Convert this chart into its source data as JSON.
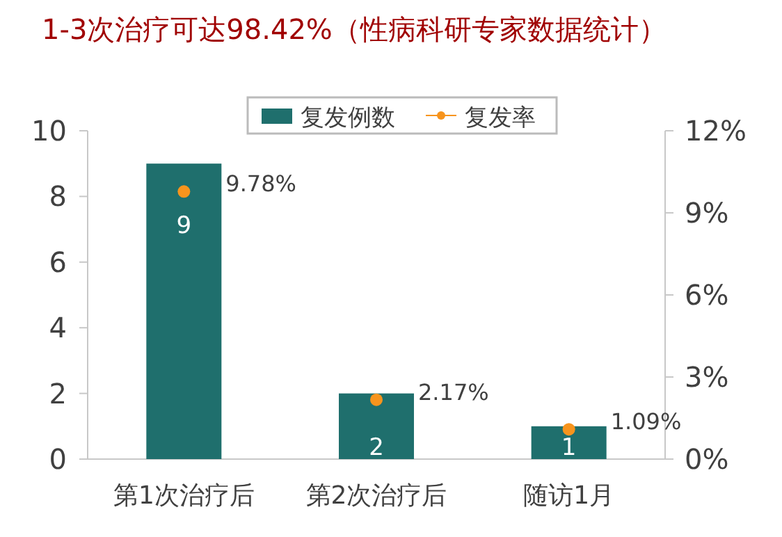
{
  "chart_data": {
    "type": "bar",
    "title": "1-3次治疗可达98.42%（性病科研专家数据统计）",
    "categories": [
      "第1次治疗后",
      "第2次治疗后",
      "随访1月"
    ],
    "series": [
      {
        "name": "复发例数",
        "color": "#1f6f6d",
        "values": [
          9,
          2,
          1
        ],
        "value_labels": [
          "9",
          "2",
          "1"
        ]
      },
      {
        "name": "复发率",
        "type": "scatter",
        "axis": "y2",
        "color": "#f7941d",
        "values": [
          9.78,
          2.17,
          1.09
        ],
        "value_labels": [
          "9.78%",
          "2.17%",
          "1.09%"
        ]
      }
    ],
    "ylim": [
      0,
      10
    ],
    "yticks": [
      0,
      2,
      4,
      6,
      8,
      10
    ],
    "y2lim": [
      0,
      12
    ],
    "y2ticks": [
      {
        "value": 0,
        "label": "0%"
      },
      {
        "value": 3,
        "label": "3%"
      },
      {
        "value": 6,
        "label": "6%"
      },
      {
        "value": 9,
        "label": "9%"
      },
      {
        "value": 12,
        "label": "12%"
      }
    ],
    "legend": "top",
    "grid": false,
    "marker": "circle"
  }
}
